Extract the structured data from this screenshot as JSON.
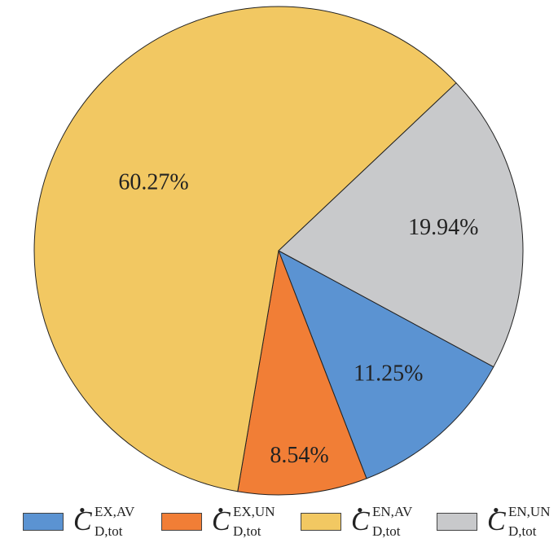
{
  "chart_data": {
    "type": "pie",
    "title": "",
    "slices": [
      {
        "label": "11.25%",
        "value": 11.25,
        "color": "#5b93d2",
        "legend_base": "C",
        "legend_sup": "EX,AV",
        "legend_sub": "D,tot"
      },
      {
        "label": "8.54%",
        "value": 8.54,
        "color": "#f17e36",
        "legend_base": "C",
        "legend_sup": "EX,UN",
        "legend_sub": "D,tot"
      },
      {
        "label": "60.27%",
        "value": 60.27,
        "color": "#f2c862",
        "legend_base": "C",
        "legend_sup": "EN,AV",
        "legend_sub": "D,tot"
      },
      {
        "label": "19.94%",
        "value": 19.94,
        "color": "#c8c9cb",
        "legend_base": "C",
        "legend_sup": "EN,UN",
        "legend_sub": "D,tot"
      }
    ],
    "legend_position": "bottom",
    "outline_color": "#222222"
  }
}
